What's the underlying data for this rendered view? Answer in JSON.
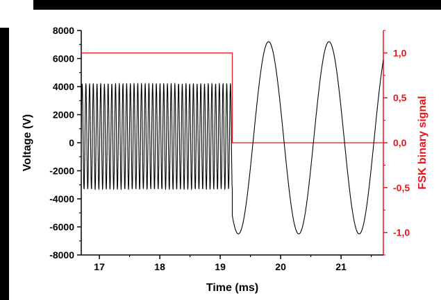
{
  "chart_data": {
    "type": "line",
    "xlabel": "Time (ms)",
    "ylabel": "Voltage (V)",
    "ylabel_right": "FSK binary signal",
    "xlim": [
      16.7,
      21.7
    ],
    "ylim": [
      -8000,
      8000
    ],
    "ylim_right": [
      -1.25,
      1.25
    ],
    "x_ticks": [
      17,
      18,
      19,
      20,
      21
    ],
    "y_ticks": [
      8000,
      6000,
      4000,
      2000,
      0,
      -2000,
      -4000,
      -6000,
      -8000
    ],
    "y_right_ticks": [
      "1,0",
      "0,5",
      "0,0",
      "-0,5",
      "-1,0"
    ],
    "y_right_tick_values": [
      1.0,
      0.5,
      0.0,
      -0.5,
      -1.0
    ],
    "grid": false,
    "colors": {
      "voltage": "#000000",
      "fsk": "#e8141e"
    },
    "series": [
      {
        "axis": "left",
        "segments": [
          {
            "x_start": 16.7,
            "x_end": 19.2,
            "frequency_khz": 16.3,
            "max": 4200,
            "min": -3300
          },
          {
            "x_start": 19.2,
            "x_end": 21.7,
            "frequency_khz": 1.0,
            "max": 7200,
            "min": -6500,
            "peaks_at": [
              19.8,
              20.8
            ],
            "troughs_at": [
              19.3,
              20.3,
              21.3
            ]
          }
        ]
      },
      {
        "axis": "right",
        "points": [
          [
            16.7,
            1.0
          ],
          [
            19.2,
            1.0
          ],
          [
            19.2,
            0.0
          ],
          [
            21.7,
            0.0
          ]
        ]
      }
    ]
  }
}
